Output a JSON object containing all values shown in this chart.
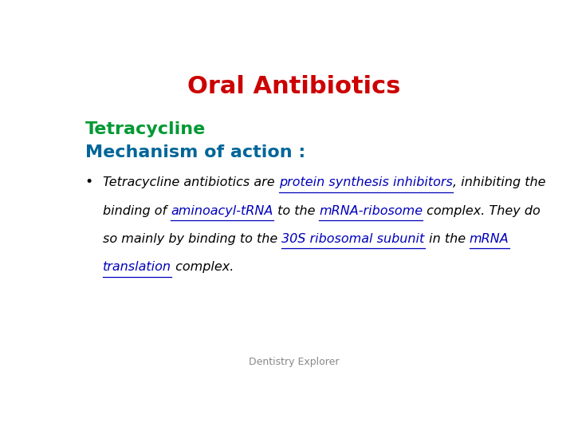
{
  "title": "Oral Antibiotics",
  "title_color": "#cc0000",
  "title_fontsize": 22,
  "subtitle1": "Tetracycline",
  "subtitle1_color": "#009933",
  "subtitle1_fontsize": 16,
  "subtitle2": "Mechanism of action :",
  "subtitle2_color": "#006699",
  "subtitle2_fontsize": 16,
  "bullet_color": "#000000",
  "bullet_fontsize": 11.5,
  "link_color": "#0000bb",
  "footer": "Dentistry Explorer",
  "footer_color": "#888888",
  "footer_fontsize": 9,
  "background_color": "#ffffff"
}
